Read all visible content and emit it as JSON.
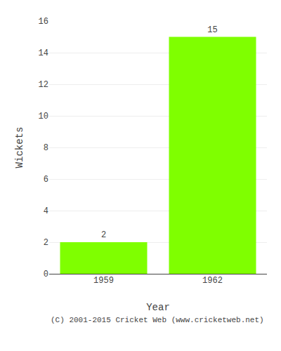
{
  "chart_data": {
    "type": "bar",
    "categories": [
      "1959",
      "1962"
    ],
    "values": [
      2,
      15
    ],
    "color": "#7fff00",
    "xlabel": "Year",
    "ylabel": "Wickets",
    "ylim": [
      0,
      16
    ],
    "yticks": [
      0,
      2,
      4,
      6,
      8,
      10,
      12,
      14,
      16
    ],
    "grid": true,
    "data_labels": true,
    "annotations": [
      "(C) 2001-2015 Cricket Web (www.cricketweb.net)"
    ]
  }
}
